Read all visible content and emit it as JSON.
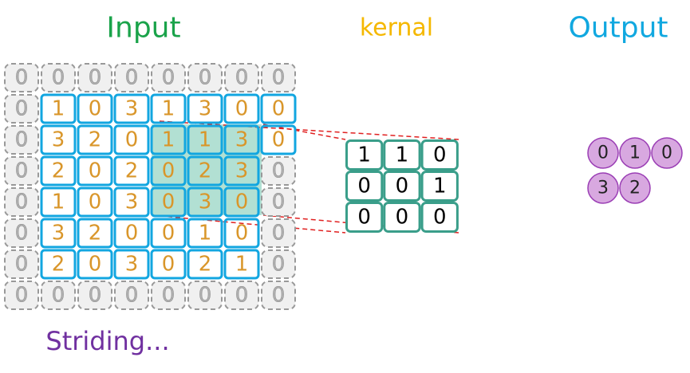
{
  "title_input": "Input",
  "title_kernel": "kernal",
  "title_output": "Output",
  "caption": "Striding...",
  "input": {
    "rows": [
      [
        0,
        0,
        0,
        0,
        0,
        0,
        0,
        0
      ],
      [
        0,
        1,
        0,
        3,
        1,
        3,
        0,
        0
      ],
      [
        0,
        3,
        2,
        0,
        1,
        1,
        3,
        0
      ],
      [
        0,
        2,
        0,
        2,
        0,
        2,
        3,
        0
      ],
      [
        0,
        1,
        0,
        3,
        0,
        3,
        0,
        0
      ],
      [
        0,
        3,
        2,
        0,
        0,
        1,
        0,
        0
      ],
      [
        0,
        2,
        0,
        3,
        0,
        2,
        1,
        0
      ],
      [
        0,
        0,
        0,
        0,
        0,
        0,
        0,
        0
      ]
    ]
  },
  "kernel": {
    "rows": [
      [
        1,
        1,
        0
      ],
      [
        0,
        0,
        1
      ],
      [
        0,
        0,
        0
      ]
    ]
  },
  "output": {
    "rows": [
      [
        0,
        1,
        0
      ],
      [
        3,
        2
      ]
    ]
  }
}
